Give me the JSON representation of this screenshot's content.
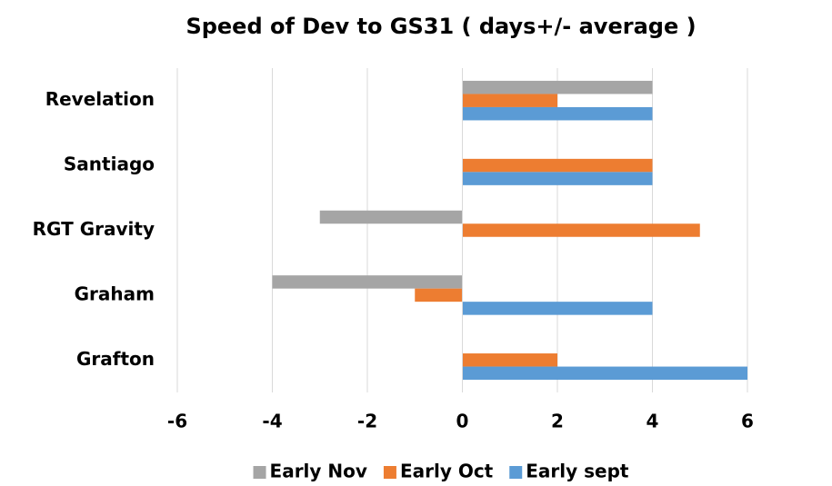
{
  "chart_data": {
    "type": "bar",
    "orientation": "horizontal",
    "title": "Speed of Dev to GS31 ( days+/- average )",
    "categories": [
      "Revelation",
      "Santiago",
      "RGT Gravity",
      "Graham",
      "Grafton"
    ],
    "series": [
      {
        "name": "Early Nov",
        "color": "#a5a5a5",
        "values": [
          4,
          0,
          -3,
          -4,
          0
        ]
      },
      {
        "name": "Early Oct",
        "color": "#ed7d31",
        "values": [
          2,
          4,
          5,
          -1,
          2
        ]
      },
      {
        "name": "Early sept",
        "color": "#5b9bd5",
        "values": [
          4,
          4,
          0,
          4,
          6
        ]
      }
    ],
    "xlim": [
      -6,
      6
    ],
    "xticks": [
      -6,
      -4,
      -2,
      0,
      2,
      4,
      6
    ],
    "grid": true,
    "legend": "bottom"
  }
}
